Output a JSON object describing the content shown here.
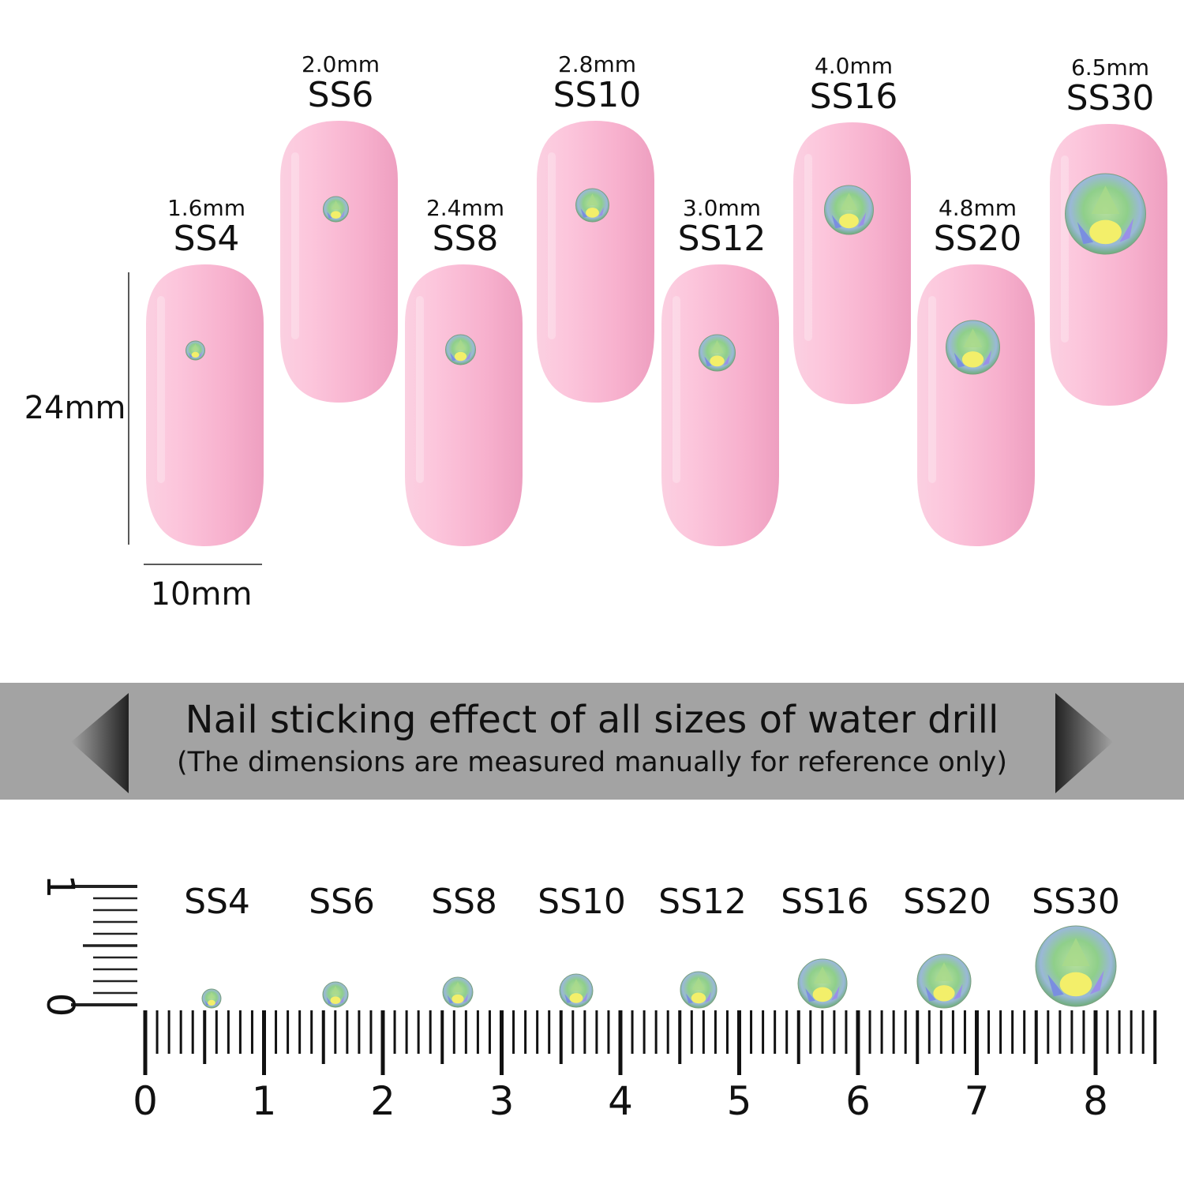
{
  "nails": [
    {
      "size": "SS4",
      "mm": "1.6mm"
    },
    {
      "size": "SS6",
      "mm": "2.0mm"
    },
    {
      "size": "SS8",
      "mm": "2.4mm"
    },
    {
      "size": "SS10",
      "mm": "2.8mm"
    },
    {
      "size": "SS12",
      "mm": "3.0mm"
    },
    {
      "size": "SS16",
      "mm": "4.0mm"
    },
    {
      "size": "SS20",
      "mm": "4.8mm"
    },
    {
      "size": "SS30",
      "mm": "6.5mm"
    }
  ],
  "dimensions": {
    "height": "24mm",
    "width": "10mm"
  },
  "banner": {
    "title": "Nail sticking effect of all sizes of water drill",
    "subtitle": "(The dimensions are measured manually for reference only)"
  },
  "ruler": {
    "horizontal_labels": [
      "0",
      "1",
      "2",
      "3",
      "4",
      "5",
      "6",
      "7",
      "8"
    ],
    "vertical_labels": [
      "0",
      "1"
    ]
  },
  "colors": {
    "nail": "#f7b3cf",
    "banner": "#a3a3a3",
    "text": "#111111"
  }
}
